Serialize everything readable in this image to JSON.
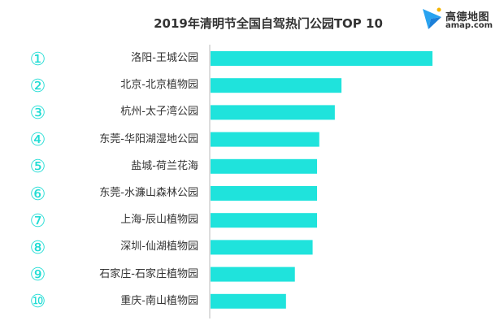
{
  "logo": {
    "icon": "amap-paper-plane-icon",
    "brand": "高德地图",
    "domain": "amap.com"
  },
  "colors": {
    "bar": "#1fe3dc",
    "rank": "#1fdcd4",
    "axis": "#bbbbbb"
  },
  "chart_data": {
    "type": "bar",
    "orientation": "horizontal",
    "title": "2019年清明节全国自驾热门公园TOP 10",
    "ranks": [
      "①",
      "②",
      "③",
      "④",
      "⑤",
      "⑥",
      "⑦",
      "⑧",
      "⑨",
      "⑩"
    ],
    "categories": [
      "洛阳-王城公园",
      "北京-北京植物园",
      "杭州-太子湾公园",
      "东莞-华阳湖湿地公园",
      "盐城-荷兰花海",
      "东莞-水濂山森林公园",
      "上海-辰山植物园",
      "深圳-仙湖植物园",
      "石家庄-石家庄植物园",
      "重庆-南山植物园"
    ],
    "values": [
      100,
      59,
      56,
      49,
      48,
      48,
      48,
      46,
      38,
      34
    ],
    "xlim": [
      0,
      100
    ],
    "grid": false,
    "legend": "none"
  }
}
